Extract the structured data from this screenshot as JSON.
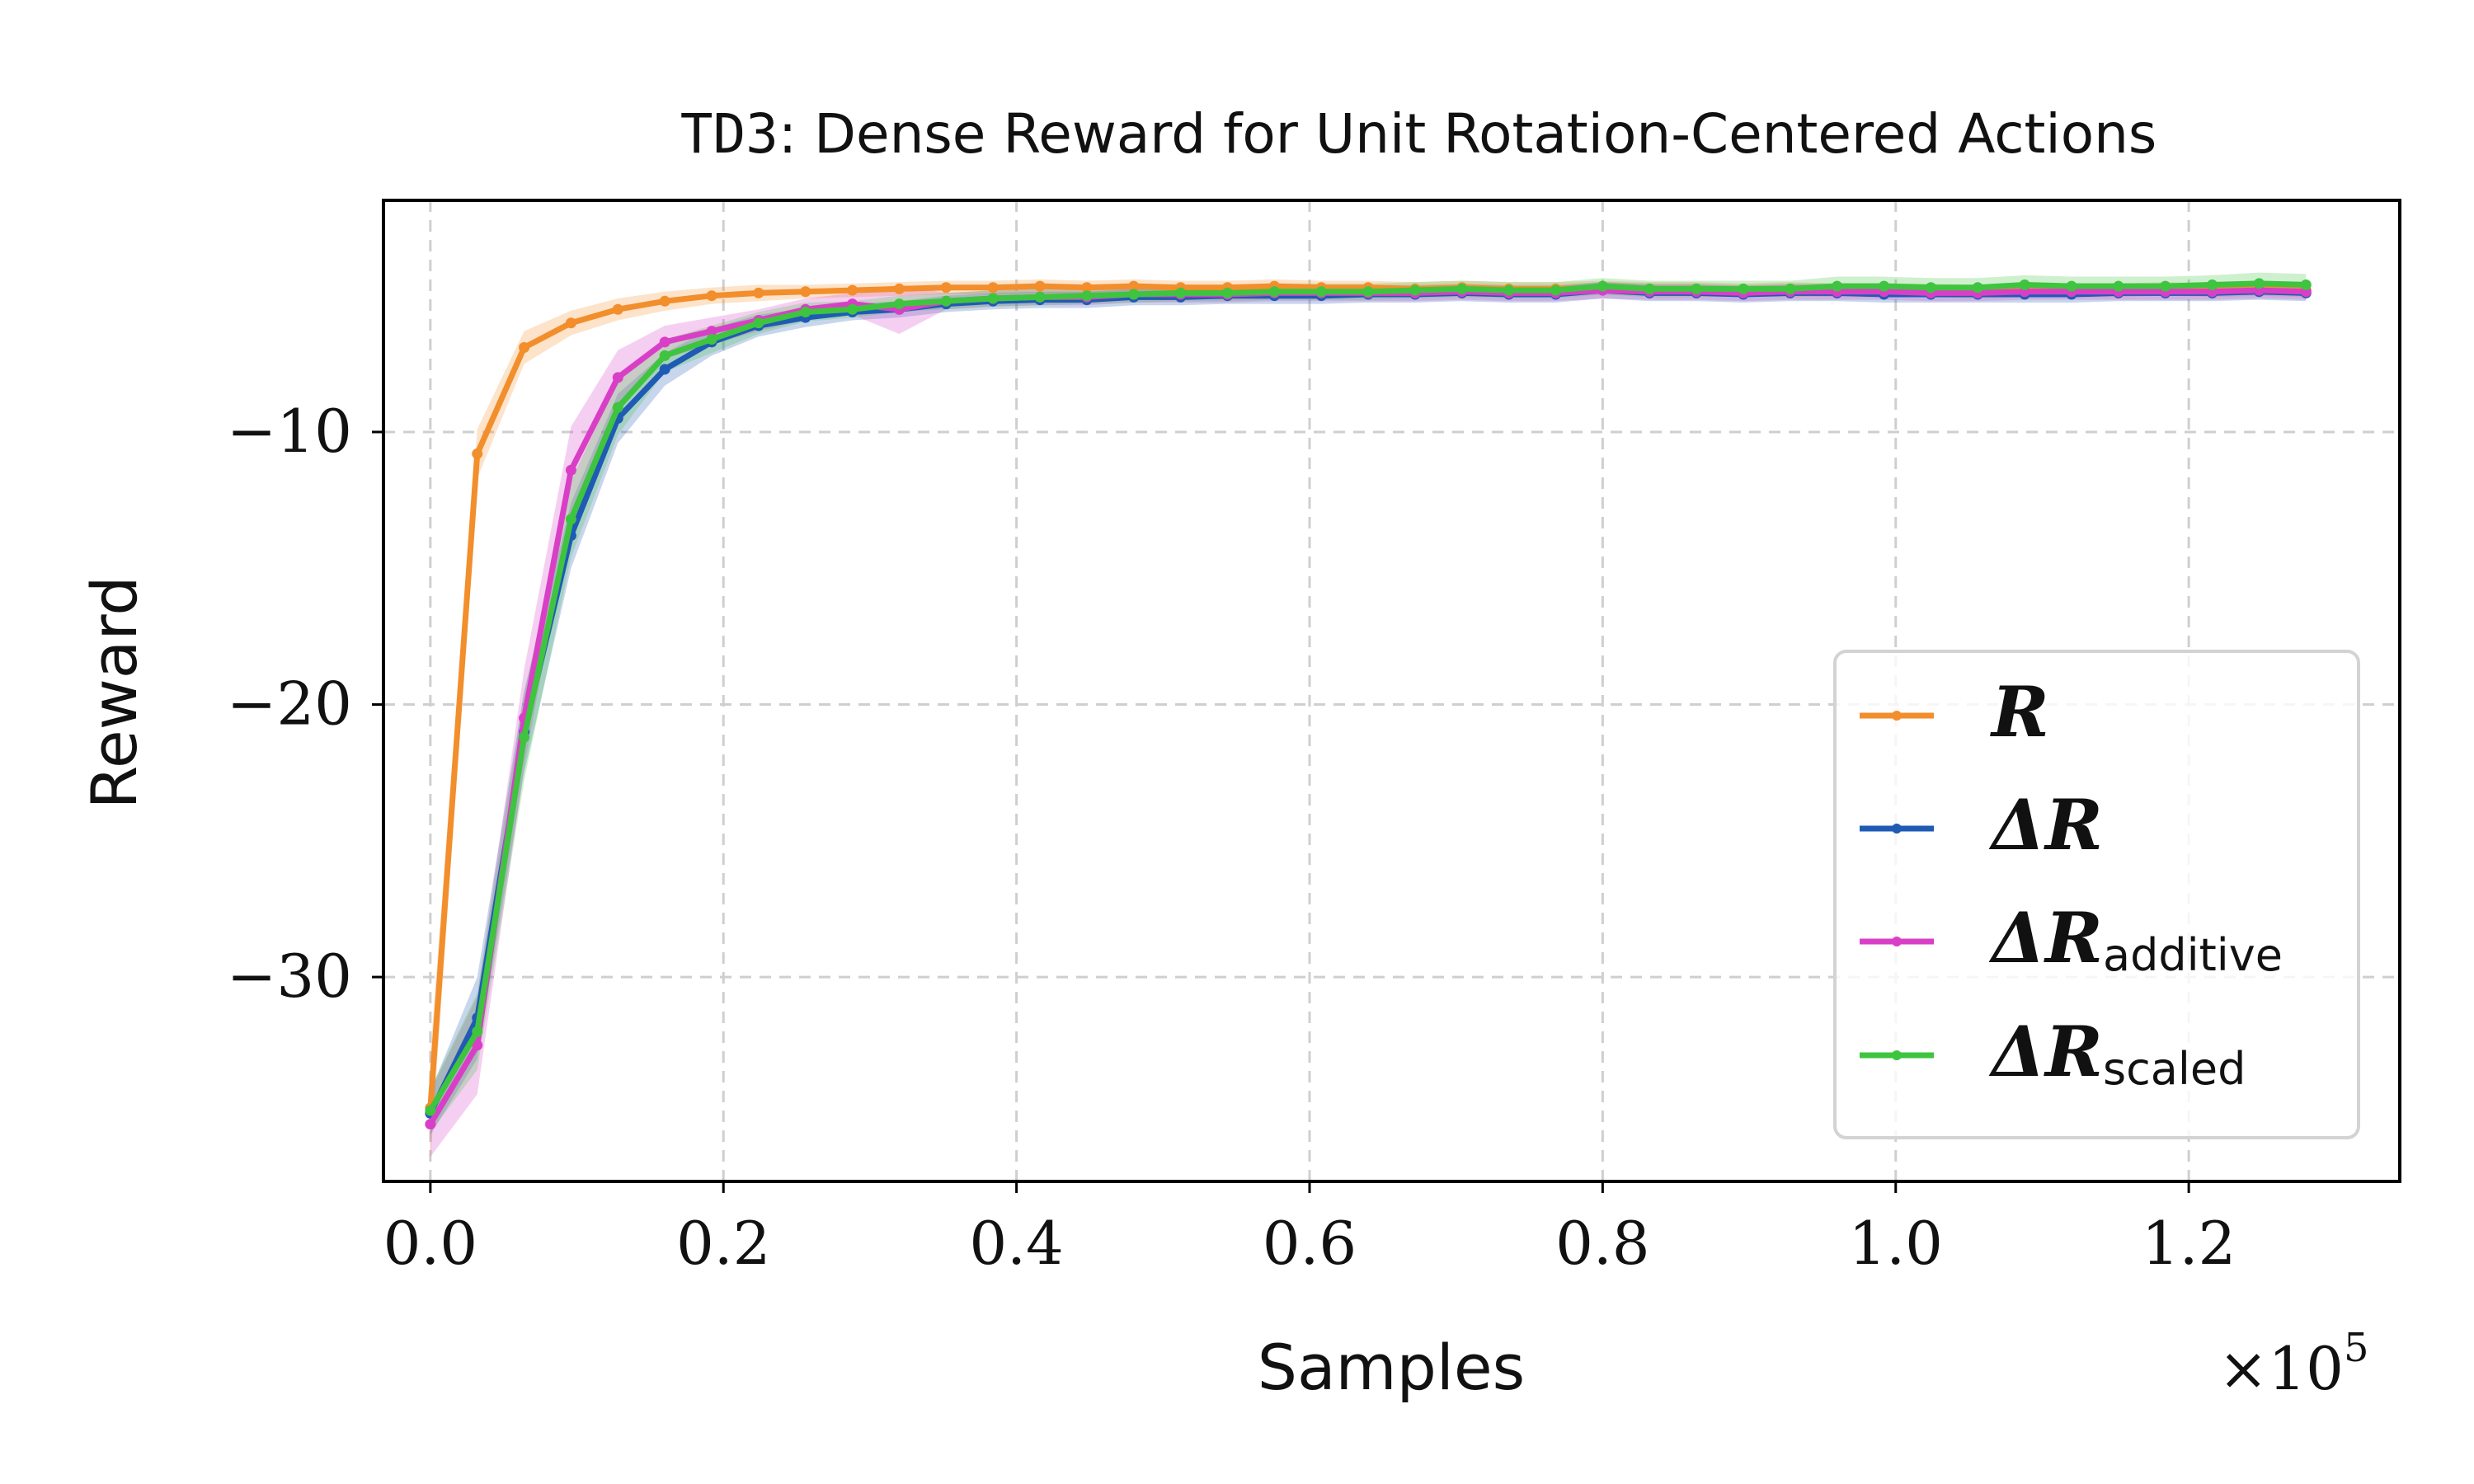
{
  "chart_data": {
    "type": "line",
    "title_prefix": "TD3",
    "title_rest": ": Dense Reward for Unit Rotation-Centered Actions",
    "xlabel": "Samples",
    "ylabel": "Reward",
    "x_multiplier": {
      "base": "×10",
      "exponent": "5"
    },
    "xlim": [
      -0.032,
      1.344
    ],
    "ylim": [
      -37.5,
      -1.5
    ],
    "xticks": [
      0.0,
      0.2,
      0.4,
      0.6,
      0.8,
      1.0,
      1.2
    ],
    "xtick_labels": [
      "0.0",
      "0.2",
      "0.4",
      "0.6",
      "0.8",
      "1.0",
      "1.2"
    ],
    "yticks": [
      -10,
      -20,
      -30
    ],
    "ytick_labels": [
      "−10",
      "−20",
      "−30"
    ],
    "grid": true,
    "legend_position": "lower-right",
    "x": [
      0.0,
      0.032,
      0.064,
      0.096,
      0.128,
      0.16,
      0.192,
      0.224,
      0.256,
      0.288,
      0.32,
      0.352,
      0.384,
      0.416,
      0.448,
      0.48,
      0.512,
      0.544,
      0.576,
      0.608,
      0.64,
      0.672,
      0.704,
      0.736,
      0.768,
      0.8,
      0.832,
      0.864,
      0.896,
      0.928,
      0.96,
      0.992,
      1.024,
      1.056,
      1.088,
      1.12,
      1.152,
      1.184,
      1.216,
      1.248,
      1.28
    ],
    "series": [
      {
        "name": "R",
        "legend_main": "R",
        "legend_sub": "",
        "color": "#f28e2b",
        "values": [
          -34.8,
          -10.8,
          -6.9,
          -6.0,
          -5.5,
          -5.2,
          -5.0,
          -4.9,
          -4.85,
          -4.8,
          -4.75,
          -4.7,
          -4.7,
          -4.65,
          -4.7,
          -4.65,
          -4.7,
          -4.7,
          -4.65,
          -4.7,
          -4.7,
          -4.75,
          -4.7,
          -4.75,
          -4.75,
          -4.7,
          -4.75,
          -4.75,
          -4.8,
          -4.75,
          -4.8,
          -4.8,
          -4.8,
          -4.85,
          -4.8,
          -4.8,
          -4.8,
          -4.75,
          -4.8,
          -4.75,
          -4.8
        ],
        "spread": [
          2.0,
          0.9,
          0.6,
          0.45,
          0.4,
          0.35,
          0.3,
          0.3,
          0.25,
          0.25,
          0.25,
          0.25,
          0.25,
          0.25,
          0.25,
          0.25,
          0.25,
          0.25,
          0.25,
          0.25,
          0.25,
          0.25,
          0.25,
          0.25,
          0.25,
          0.25,
          0.25,
          0.25,
          0.25,
          0.25,
          0.25,
          0.25,
          0.25,
          0.25,
          0.25,
          0.25,
          0.25,
          0.25,
          0.25,
          0.25,
          0.25
        ]
      },
      {
        "name": "ΔR",
        "legend_main": "ΔR",
        "legend_sub": "",
        "color": "#1f5bb5",
        "values": [
          -35.0,
          -31.5,
          -21.0,
          -13.8,
          -9.5,
          -7.7,
          -6.7,
          -6.1,
          -5.8,
          -5.6,
          -5.5,
          -5.3,
          -5.2,
          -5.15,
          -5.15,
          -5.05,
          -5.05,
          -5.0,
          -5.0,
          -5.0,
          -4.95,
          -4.95,
          -4.9,
          -4.95,
          -4.95,
          -4.8,
          -4.9,
          -4.9,
          -4.95,
          -4.9,
          -4.9,
          -4.95,
          -4.95,
          -4.95,
          -4.95,
          -4.95,
          -4.9,
          -4.9,
          -4.9,
          -4.85,
          -4.9
        ],
        "spread": [
          0.8,
          1.5,
          1.5,
          1.2,
          0.9,
          0.6,
          0.5,
          0.4,
          0.35,
          0.3,
          0.3,
          0.3,
          0.3,
          0.3,
          0.3,
          0.3,
          0.3,
          0.3,
          0.3,
          0.3,
          0.3,
          0.3,
          0.3,
          0.3,
          0.3,
          0.3,
          0.3,
          0.3,
          0.3,
          0.3,
          0.3,
          0.3,
          0.3,
          0.3,
          0.3,
          0.3,
          0.3,
          0.3,
          0.3,
          0.3,
          0.3
        ]
      },
      {
        "name": "ΔR additive",
        "legend_main": "ΔR",
        "legend_sub": "additive",
        "color": "#d93fc6",
        "values": [
          -35.4,
          -32.5,
          -20.5,
          -11.4,
          -8.0,
          -6.7,
          -6.3,
          -5.9,
          -5.5,
          -5.3,
          -5.5,
          -5.2,
          -5.1,
          -5.05,
          -5.05,
          -4.95,
          -4.95,
          -4.95,
          -4.9,
          -4.9,
          -4.9,
          -4.9,
          -4.85,
          -4.9,
          -4.9,
          -4.8,
          -4.85,
          -4.85,
          -4.9,
          -4.85,
          -4.85,
          -4.85,
          -4.9,
          -4.9,
          -4.85,
          -4.85,
          -4.85,
          -4.85,
          -4.85,
          -4.8,
          -4.85
        ],
        "spread": [
          1.2,
          1.8,
          1.8,
          1.6,
          1.0,
          0.6,
          0.5,
          0.4,
          0.4,
          0.4,
          0.9,
          0.3,
          0.3,
          0.3,
          0.3,
          0.3,
          0.3,
          0.3,
          0.3,
          0.3,
          0.3,
          0.3,
          0.3,
          0.3,
          0.3,
          0.3,
          0.3,
          0.3,
          0.3,
          0.3,
          0.3,
          0.3,
          0.3,
          0.3,
          0.3,
          0.3,
          0.3,
          0.3,
          0.3,
          0.3,
          0.3
        ]
      },
      {
        "name": "ΔR scaled",
        "legend_main": "ΔR",
        "legend_sub": "scaled",
        "color": "#3ec43e",
        "values": [
          -34.9,
          -32.0,
          -21.2,
          -13.2,
          -9.1,
          -7.2,
          -6.6,
          -6.0,
          -5.6,
          -5.5,
          -5.3,
          -5.2,
          -5.1,
          -5.05,
          -5.0,
          -4.95,
          -4.9,
          -4.9,
          -4.85,
          -4.85,
          -4.85,
          -4.8,
          -4.75,
          -4.8,
          -4.8,
          -4.65,
          -4.75,
          -4.75,
          -4.75,
          -4.75,
          -4.65,
          -4.65,
          -4.7,
          -4.7,
          -4.6,
          -4.65,
          -4.65,
          -4.65,
          -4.6,
          -4.55,
          -4.6
        ],
        "spread": [
          0.8,
          1.4,
          1.6,
          1.4,
          1.0,
          0.6,
          0.5,
          0.4,
          0.35,
          0.3,
          0.3,
          0.3,
          0.3,
          0.3,
          0.3,
          0.3,
          0.3,
          0.3,
          0.3,
          0.3,
          0.3,
          0.3,
          0.3,
          0.3,
          0.3,
          0.3,
          0.3,
          0.3,
          0.3,
          0.3,
          0.35,
          0.35,
          0.35,
          0.35,
          0.35,
          0.35,
          0.35,
          0.35,
          0.35,
          0.4,
          0.4
        ]
      }
    ]
  }
}
